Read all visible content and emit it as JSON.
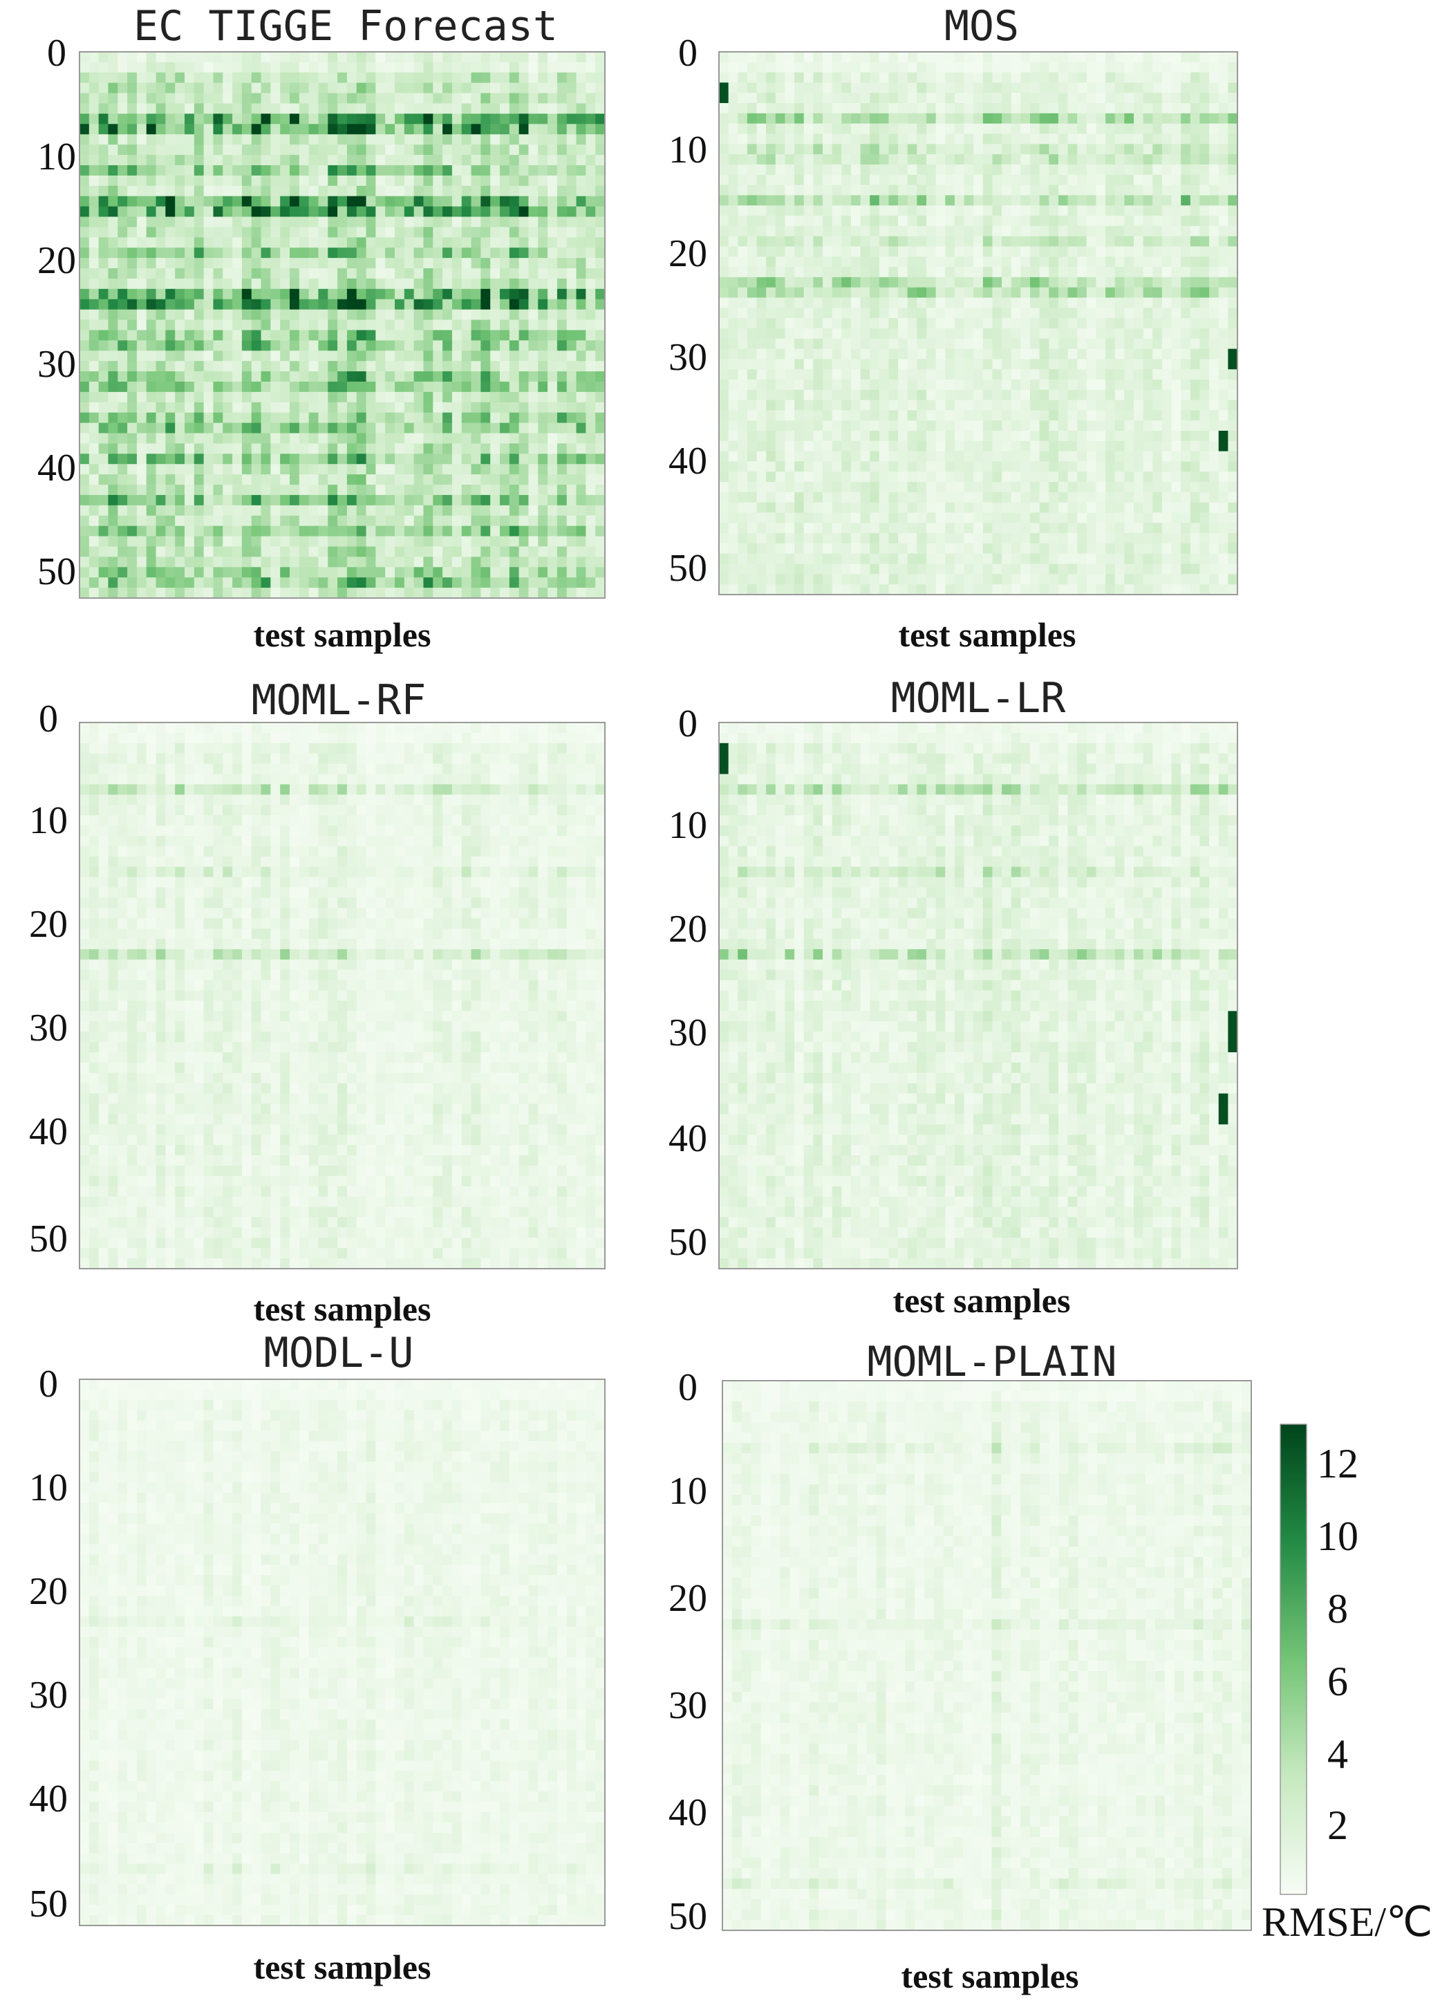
{
  "chart_data": {
    "type": "heatmap",
    "colorbar": {
      "label": "RMSE/℃",
      "ticks": [
        "2",
        "4",
        "6",
        "8",
        "10",
        "12"
      ],
      "tick_values": [
        2,
        4,
        6,
        8,
        10,
        12
      ],
      "range": [
        0,
        13
      ],
      "colormap": [
        "#f7fcf5",
        "#c7e9c0",
        "#74c476",
        "#238b45",
        "#00441b"
      ]
    },
    "panels": [
      {
        "title": "EC TIGGE Forecast",
        "xlabel": "test samples",
        "yticks": [
          "0",
          "10",
          "20",
          "30",
          "40",
          "50"
        ],
        "ytick_values": [
          0,
          10,
          20,
          30,
          40,
          50
        ],
        "rows": 53,
        "cols": 55,
        "base_level": 2.6,
        "strong_rows": [
          6,
          7,
          14,
          15,
          23,
          24
        ],
        "moderate_rows": [
          11,
          19,
          27,
          28,
          31,
          32,
          35,
          36,
          39,
          43,
          46,
          50,
          51
        ],
        "strong_cols": [
          28
        ],
        "dark_spots": []
      },
      {
        "title": "MOS",
        "xlabel": "test samples",
        "yticks": [
          "0",
          "10",
          "20",
          "30",
          "40",
          "50"
        ],
        "ytick_values": [
          0,
          10,
          20,
          30,
          40,
          50
        ],
        "rows": 53,
        "cols": 55,
        "base_level": 1.3,
        "strong_rows": [
          6,
          14,
          22,
          23
        ],
        "moderate_rows": [
          9,
          10,
          18
        ],
        "strong_cols": [
          28
        ],
        "dark_spots": [
          {
            "rows": [
              3,
              4
            ],
            "col": 0
          },
          {
            "rows": [
              29,
              30
            ],
            "col": 54
          },
          {
            "rows": [
              37,
              38
            ],
            "col": 53
          }
        ]
      },
      {
        "title": "MOML-RF",
        "xlabel": "test samples",
        "yticks": [
          "0",
          "10",
          "20",
          "30",
          "40",
          "50"
        ],
        "ytick_values": [
          0,
          10,
          20,
          30,
          40,
          50
        ],
        "rows": 53,
        "cols": 55,
        "base_level": 0.9,
        "strong_rows": [
          6,
          22
        ],
        "moderate_rows": [
          14
        ],
        "strong_cols": [],
        "dark_spots": []
      },
      {
        "title": "MOML-LR",
        "xlabel": "test samples",
        "yticks": [
          "0",
          "10",
          "20",
          "30",
          "40",
          "50"
        ],
        "ytick_values": [
          0,
          10,
          20,
          30,
          40,
          50
        ],
        "rows": 53,
        "cols": 55,
        "base_level": 1.1,
        "strong_rows": [
          6,
          22
        ],
        "moderate_rows": [
          14
        ],
        "strong_cols": [
          28
        ],
        "dark_spots": [
          {
            "rows": [
              2,
              3,
              4
            ],
            "col": 0
          },
          {
            "rows": [
              28,
              29,
              30,
              31
            ],
            "col": 54
          },
          {
            "rows": [
              36,
              37,
              38
            ],
            "col": 53
          }
        ]
      },
      {
        "title": "MODL-U",
        "xlabel": "test samples",
        "yticks": [
          "0",
          "10",
          "20",
          "30",
          "40",
          "50"
        ],
        "ytick_values": [
          0,
          10,
          20,
          30,
          40,
          50
        ],
        "rows": 53,
        "cols": 55,
        "base_level": 0.6,
        "strong_rows": [],
        "moderate_rows": [
          23,
          47
        ],
        "strong_cols": [
          29
        ],
        "dark_spots": []
      },
      {
        "title": "MOML-PLAIN",
        "xlabel": "test samples",
        "yticks": [
          "0",
          "10",
          "20",
          "30",
          "40",
          "50"
        ],
        "ytick_values": [
          0,
          10,
          20,
          30,
          40,
          50
        ],
        "rows": 53,
        "cols": 55,
        "base_level": 0.7,
        "strong_rows": [],
        "moderate_rows": [
          6,
          23,
          48
        ],
        "strong_cols": [
          28
        ],
        "dark_spots": []
      }
    ]
  }
}
